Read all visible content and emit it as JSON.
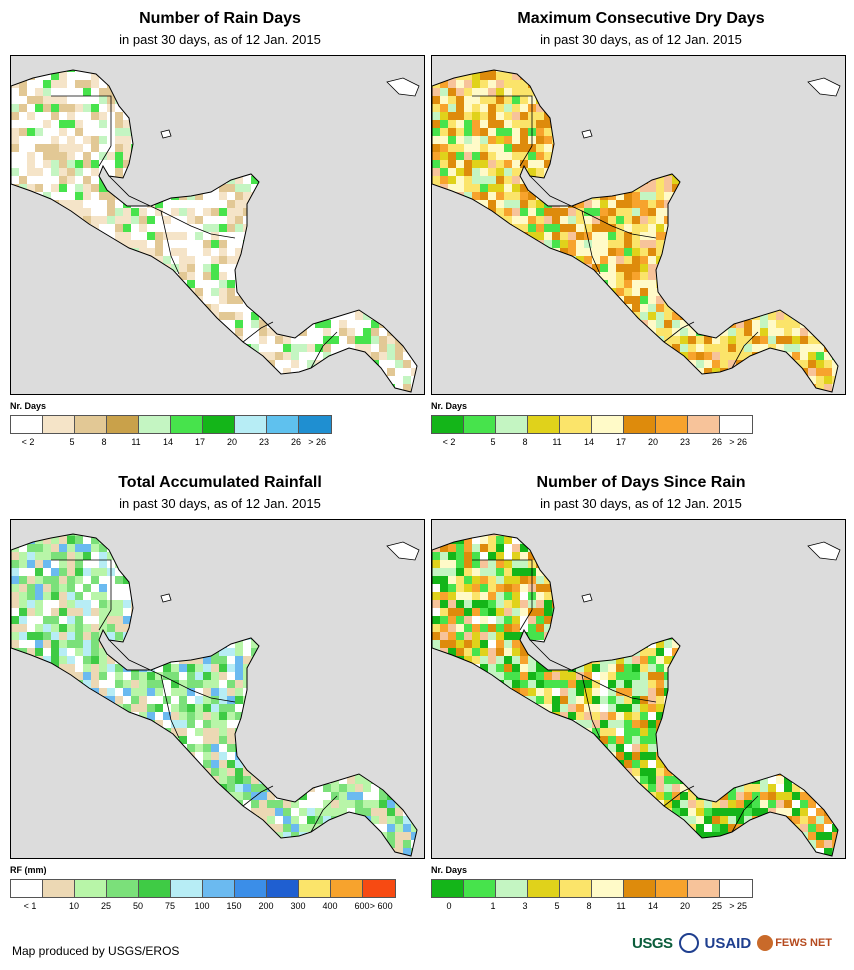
{
  "panels": [
    {
      "id": "rain-days",
      "title": "Number of Rain Days",
      "subtitle": "in past 30 days, as of 12 Jan. 2015",
      "legend_title": "Nr. Days",
      "legend_colors": [
        "#ffffff",
        "#f5e4c8",
        "#e2c895",
        "#c9a14a",
        "#c4f5c2",
        "#47e34c",
        "#14b519",
        "#b7edf5",
        "#5fc1ee",
        "#1f8fd1"
      ],
      "legend_labels": [
        "< 2",
        "5",
        "8",
        "11",
        "14",
        "17",
        "20",
        "23",
        "26",
        "> 26"
      ]
    },
    {
      "id": "dry-days",
      "title": "Maximum Consecutive Dry Days",
      "subtitle": "in past 30 days, as of 12 Jan. 2015",
      "legend_title": "Nr. Days",
      "legend_colors": [
        "#14b519",
        "#47e34c",
        "#c4f5c2",
        "#e0d21b",
        "#fbe46a",
        "#fffac8",
        "#de8b0c",
        "#f7a32d",
        "#f7c39a",
        "#ffffff"
      ],
      "legend_labels": [
        "< 2",
        "5",
        "8",
        "11",
        "14",
        "17",
        "20",
        "23",
        "26",
        "> 26"
      ]
    },
    {
      "id": "rainfall",
      "title": "Total Accumulated Rainfall",
      "subtitle": "in past 30 days, as of 12 Jan. 2015",
      "legend_title": "RF (mm)",
      "legend_colors": [
        "#ffffff",
        "#ecd8b4",
        "#b8f5a8",
        "#7be07a",
        "#3fcb45",
        "#b7edf5",
        "#6bbaf0",
        "#3b8ee8",
        "#1f5fd1",
        "#fbe46a",
        "#f7a32d",
        "#f74a12"
      ],
      "legend_labels": [
        "< 1",
        "10",
        "25",
        "50",
        "75",
        "100",
        "150",
        "200",
        "300",
        "400",
        "600",
        "> 600"
      ]
    },
    {
      "id": "since-rain",
      "title": "Number of Days Since Rain",
      "subtitle": "in past 30 days, as of 12 Jan. 2015",
      "legend_title": "Nr. Days",
      "legend_colors": [
        "#14b519",
        "#47e34c",
        "#c4f5c2",
        "#e0d21b",
        "#fbe46a",
        "#fffac8",
        "#de8b0c",
        "#f7a32d",
        "#f7c39a",
        "#ffffff"
      ],
      "legend_labels": [
        "0",
        "1",
        "3",
        "5",
        "8",
        "11",
        "14",
        "20",
        "25",
        "> 25"
      ]
    }
  ],
  "footer": {
    "credit": "Map produced by USGS/EROS",
    "logo_usgs": "USGS",
    "logo_usaid": "USAID",
    "logo_fews": "FEWS NET"
  }
}
